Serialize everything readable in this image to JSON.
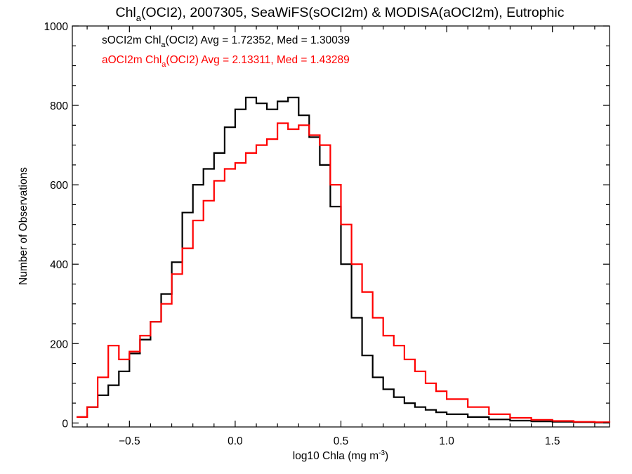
{
  "chart_data": {
    "type": "line",
    "title_main": "Chl",
    "title_sub": "a",
    "title_rest": "(OCI2), 2007305, SeaWiFS(sOCI2m) & MODISA(aOCI2m), Eutrophic",
    "xlabel_main": "log10 Chla (mg m",
    "xlabel_sup": "-3",
    "xlabel_end": ")",
    "ylabel": "Number of Observations",
    "xlim": [
      -0.77,
      1.77
    ],
    "ylim": [
      -10,
      1000
    ],
    "xticks": [
      -0.5,
      0.0,
      0.5,
      1.0,
      1.5
    ],
    "xtick_labels": [
      "−0.5",
      "0.0",
      "0.5",
      "1.0",
      "1.5"
    ],
    "yticks": [
      0,
      200,
      400,
      600,
      800,
      1000
    ],
    "ytick_labels": [
      "0",
      "200",
      "400",
      "600",
      "800",
      "1000"
    ],
    "legend_placement": "top-left",
    "series": [
      {
        "label_pre": "sOCI2m Chl",
        "label_sub": "a",
        "label_post": "(OCI2) Avg = 1.72352, Med = 1.30039",
        "color": "#000000",
        "x": [
          -0.75,
          -0.7,
          -0.65,
          -0.6,
          -0.55,
          -0.5,
          -0.45,
          -0.4,
          -0.35,
          -0.3,
          -0.25,
          -0.2,
          -0.15,
          -0.1,
          -0.05,
          0.0,
          0.05,
          0.1,
          0.15,
          0.2,
          0.25,
          0.3,
          0.35,
          0.4,
          0.45,
          0.5,
          0.55,
          0.6,
          0.65,
          0.7,
          0.75,
          0.8,
          0.85,
          0.9,
          0.95,
          1.0,
          1.1,
          1.2,
          1.3,
          1.4,
          1.5,
          1.6,
          1.7,
          1.77
        ],
        "y": [
          15,
          40,
          70,
          95,
          130,
          175,
          210,
          255,
          325,
          405,
          530,
          600,
          640,
          680,
          745,
          790,
          820,
          805,
          790,
          810,
          820,
          775,
          720,
          650,
          545,
          400,
          265,
          170,
          115,
          85,
          65,
          50,
          40,
          33,
          27,
          22,
          15,
          9,
          6,
          4,
          3,
          2,
          1,
          1
        ]
      },
      {
        "label_pre": "aOCI2m Chl",
        "label_sub": "a",
        "label_post": "(OCI2) Avg = 2.13311, Med = 1.43289",
        "color": "#ff0000",
        "x": [
          -0.75,
          -0.7,
          -0.65,
          -0.6,
          -0.55,
          -0.5,
          -0.45,
          -0.4,
          -0.35,
          -0.3,
          -0.25,
          -0.2,
          -0.15,
          -0.1,
          -0.05,
          0.0,
          0.05,
          0.1,
          0.15,
          0.2,
          0.25,
          0.3,
          0.35,
          0.4,
          0.45,
          0.5,
          0.55,
          0.6,
          0.65,
          0.7,
          0.75,
          0.8,
          0.85,
          0.9,
          0.95,
          1.0,
          1.1,
          1.2,
          1.3,
          1.4,
          1.5,
          1.6,
          1.7,
          1.77
        ],
        "y": [
          15,
          40,
          115,
          195,
          160,
          180,
          220,
          255,
          300,
          375,
          440,
          510,
          560,
          610,
          640,
          655,
          680,
          700,
          715,
          755,
          740,
          750,
          725,
          700,
          600,
          500,
          400,
          330,
          265,
          220,
          195,
          160,
          130,
          100,
          80,
          60,
          40,
          22,
          13,
          8,
          5,
          3,
          2,
          1
        ]
      }
    ]
  }
}
